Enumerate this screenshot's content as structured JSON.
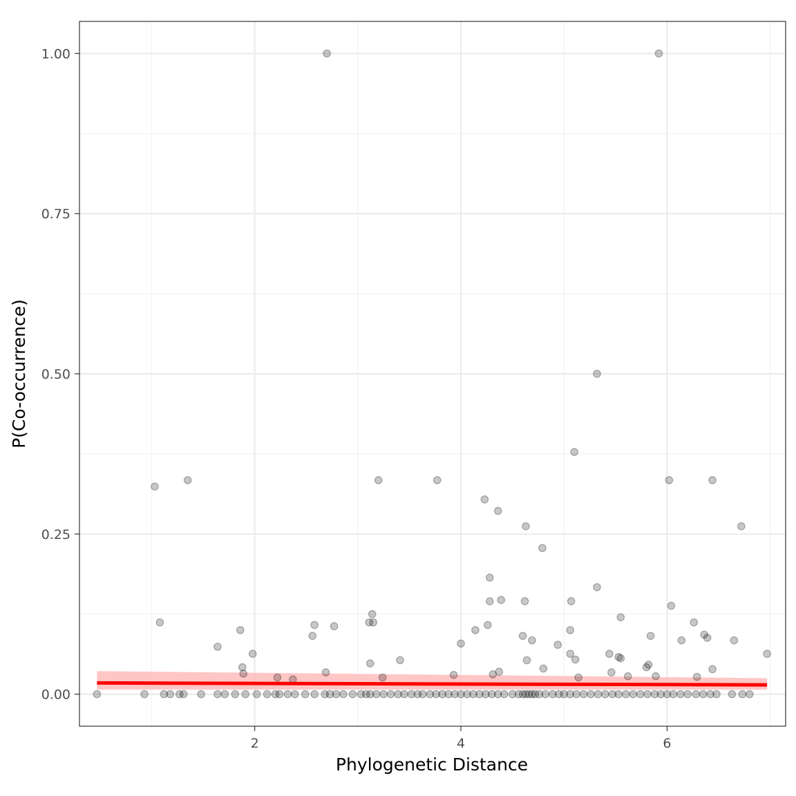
{
  "chart_data": {
    "type": "scatter",
    "title": "",
    "xlabel": "Phylogenetic Distance",
    "ylabel": "P(Co-occurrence)",
    "xlim": [
      0.3,
      7.15
    ],
    "ylim": [
      -0.05,
      1.05
    ],
    "x_ticks": [
      2,
      4,
      6
    ],
    "x_tick_labels": [
      "2",
      "4",
      "6"
    ],
    "y_ticks": [
      0,
      0.25,
      0.5,
      0.75,
      1.0
    ],
    "y_tick_labels": [
      "0.00",
      "0.25",
      "0.50",
      "0.75",
      "1.00"
    ],
    "grid": true,
    "legend": "none",
    "point_color": "#000000",
    "point_alpha": 0.22,
    "trend_color": "#ff0000",
    "band_color": "#ffb3b3",
    "trend_line": {
      "x": [
        0.47,
        6.97
      ],
      "y": [
        0.0175,
        0.0145
      ]
    },
    "confidence_band": {
      "x": [
        0.47,
        6.97
      ],
      "upper": [
        0.036,
        0.025
      ],
      "lower": [
        0.007,
        0.007
      ]
    },
    "points": [
      [
        2.7,
        1.0
      ],
      [
        5.92,
        1.0
      ],
      [
        5.32,
        0.5
      ],
      [
        5.1,
        0.378
      ],
      [
        1.03,
        0.324
      ],
      [
        1.35,
        0.334
      ],
      [
        3.2,
        0.334
      ],
      [
        3.77,
        0.334
      ],
      [
        6.02,
        0.334
      ],
      [
        6.44,
        0.334
      ],
      [
        4.23,
        0.304
      ],
      [
        4.36,
        0.286
      ],
      [
        4.63,
        0.262
      ],
      [
        6.72,
        0.262
      ],
      [
        4.79,
        0.228
      ],
      [
        4.28,
        0.182
      ],
      [
        5.32,
        0.167
      ],
      [
        4.28,
        0.145
      ],
      [
        4.39,
        0.147
      ],
      [
        4.62,
        0.145
      ],
      [
        5.07,
        0.145
      ],
      [
        6.04,
        0.138
      ],
      [
        3.14,
        0.125
      ],
      [
        5.55,
        0.12
      ],
      [
        1.08,
        0.112
      ],
      [
        3.11,
        0.112
      ],
      [
        3.15,
        0.112
      ],
      [
        6.26,
        0.112
      ],
      [
        2.58,
        0.108
      ],
      [
        2.77,
        0.106
      ],
      [
        4.26,
        0.108
      ],
      [
        1.86,
        0.1
      ],
      [
        4.14,
        0.1
      ],
      [
        5.06,
        0.1
      ],
      [
        2.56,
        0.091
      ],
      [
        4.6,
        0.091
      ],
      [
        5.84,
        0.091
      ],
      [
        6.36,
        0.093
      ],
      [
        4.69,
        0.084
      ],
      [
        6.14,
        0.084
      ],
      [
        6.39,
        0.088
      ],
      [
        6.65,
        0.084
      ],
      [
        4.0,
        0.079
      ],
      [
        4.94,
        0.077
      ],
      [
        1.64,
        0.074
      ],
      [
        1.98,
        0.063
      ],
      [
        5.06,
        0.063
      ],
      [
        5.44,
        0.063
      ],
      [
        6.97,
        0.063
      ],
      [
        5.53,
        0.058
      ],
      [
        5.55,
        0.056
      ],
      [
        3.41,
        0.053
      ],
      [
        4.64,
        0.053
      ],
      [
        5.11,
        0.054
      ],
      [
        3.12,
        0.048
      ],
      [
        5.82,
        0.046
      ],
      [
        1.88,
        0.042
      ],
      [
        4.8,
        0.04
      ],
      [
        5.8,
        0.042
      ],
      [
        6.44,
        0.039
      ],
      [
        4.37,
        0.035
      ],
      [
        5.46,
        0.034
      ],
      [
        1.89,
        0.032
      ],
      [
        2.69,
        0.034
      ],
      [
        3.93,
        0.03
      ],
      [
        4.31,
        0.031
      ],
      [
        5.62,
        0.028
      ],
      [
        5.89,
        0.028
      ],
      [
        6.29,
        0.027
      ],
      [
        2.22,
        0.026
      ],
      [
        3.24,
        0.026
      ],
      [
        5.14,
        0.026
      ],
      [
        2.37,
        0.023
      ],
      [
        0.47,
        0
      ],
      [
        0.93,
        0
      ],
      [
        1.12,
        0
      ],
      [
        1.18,
        0
      ],
      [
        1.27,
        0
      ],
      [
        1.31,
        0
      ],
      [
        1.48,
        0
      ],
      [
        1.64,
        0
      ],
      [
        1.71,
        0
      ],
      [
        1.81,
        0
      ],
      [
        1.91,
        0
      ],
      [
        2.02,
        0
      ],
      [
        2.12,
        0
      ],
      [
        2.2,
        0
      ],
      [
        2.24,
        0
      ],
      [
        2.32,
        0
      ],
      [
        2.39,
        0
      ],
      [
        2.49,
        0
      ],
      [
        2.58,
        0
      ],
      [
        2.68,
        0
      ],
      [
        2.73,
        0
      ],
      [
        2.79,
        0
      ],
      [
        2.86,
        0
      ],
      [
        2.95,
        0
      ],
      [
        3.03,
        0
      ],
      [
        3.08,
        0
      ],
      [
        3.12,
        0
      ],
      [
        3.18,
        0
      ],
      [
        3.25,
        0
      ],
      [
        3.32,
        0
      ],
      [
        3.39,
        0
      ],
      [
        3.45,
        0
      ],
      [
        3.52,
        0
      ],
      [
        3.58,
        0
      ],
      [
        3.63,
        0
      ],
      [
        3.7,
        0
      ],
      [
        3.76,
        0
      ],
      [
        3.82,
        0
      ],
      [
        3.88,
        0
      ],
      [
        3.94,
        0
      ],
      [
        4.0,
        0
      ],
      [
        4.06,
        0
      ],
      [
        4.12,
        0
      ],
      [
        4.18,
        0
      ],
      [
        4.24,
        0
      ],
      [
        4.3,
        0
      ],
      [
        4.36,
        0
      ],
      [
        4.42,
        0
      ],
      [
        4.5,
        0
      ],
      [
        4.56,
        0
      ],
      [
        4.6,
        0
      ],
      [
        4.63,
        0
      ],
      [
        4.66,
        0
      ],
      [
        4.69,
        0
      ],
      [
        4.72,
        0
      ],
      [
        4.76,
        0
      ],
      [
        4.82,
        0
      ],
      [
        4.89,
        0
      ],
      [
        4.95,
        0
      ],
      [
        5.0,
        0
      ],
      [
        5.06,
        0
      ],
      [
        5.12,
        0
      ],
      [
        5.19,
        0
      ],
      [
        5.26,
        0
      ],
      [
        5.33,
        0
      ],
      [
        5.4,
        0
      ],
      [
        5.47,
        0
      ],
      [
        5.53,
        0
      ],
      [
        5.6,
        0
      ],
      [
        5.67,
        0
      ],
      [
        5.74,
        0
      ],
      [
        5.81,
        0
      ],
      [
        5.88,
        0
      ],
      [
        5.94,
        0
      ],
      [
        6.0,
        0
      ],
      [
        6.06,
        0
      ],
      [
        6.13,
        0
      ],
      [
        6.2,
        0
      ],
      [
        6.28,
        0
      ],
      [
        6.35,
        0
      ],
      [
        6.42,
        0
      ],
      [
        6.48,
        0
      ],
      [
        6.63,
        0
      ],
      [
        6.73,
        0
      ],
      [
        6.8,
        0
      ]
    ]
  }
}
